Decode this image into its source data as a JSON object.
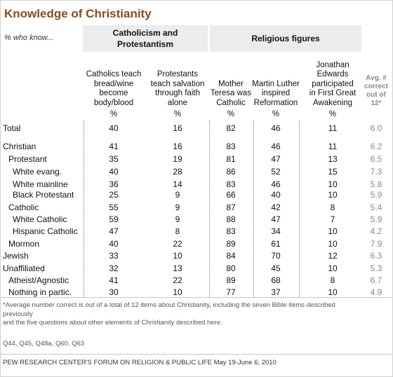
{
  "title": "Knowledge of Christianity",
  "subtitle": "% who know...",
  "column_groups": [
    {
      "label_line1": "Catholicism and",
      "label_line2": "Protestantism"
    },
    {
      "label_line1": "Religious figures",
      "label_line2": ""
    }
  ],
  "unit_symbol": "%",
  "chart_data": {
    "type": "table",
    "columns": [
      "Catholics teach bread/wine become body/blood",
      "Protestants teach salvation through faith alone",
      "Mother Teresa was Catholic",
      "Martin Luther inspired Reformation",
      "Jonathan Edwards participated in First Great Awakening",
      "Avg. # correct out of 12*"
    ],
    "column_header_lines": [
      [
        "Catholics teach",
        "bread/wine",
        "become",
        "body/blood"
      ],
      [
        "Protestants",
        "teach salvation",
        "through faith",
        "alone"
      ],
      [
        "Mother",
        "Teresa was",
        "Catholic"
      ],
      [
        "Martin Luther",
        "inspired",
        "Reformation"
      ],
      [
        "Jonathan",
        "Edwards",
        "participated",
        "in First Great",
        "Awakening"
      ],
      [
        "Avg. #",
        "correct",
        "out of",
        "12*"
      ]
    ],
    "rows": [
      {
        "label": "Total",
        "indent": 0,
        "values": [
          "40",
          "16",
          "82",
          "46",
          "11",
          "6.0"
        ]
      },
      {
        "label": "Christian",
        "indent": 0,
        "values": [
          "41",
          "16",
          "83",
          "46",
          "11",
          "6.2"
        ]
      },
      {
        "label": "Protestant",
        "indent": 1,
        "values": [
          "35",
          "19",
          "81",
          "47",
          "13",
          "6.5"
        ]
      },
      {
        "label": "White evang.",
        "indent": 2,
        "values": [
          "40",
          "28",
          "86",
          "52",
          "15",
          "7.3"
        ]
      },
      {
        "label": "White mainline",
        "indent": 2,
        "values": [
          "36",
          "14",
          "83",
          "46",
          "10",
          "5.8"
        ]
      },
      {
        "label": "Black Protestant",
        "indent": 2,
        "values": [
          "25",
          "9",
          "66",
          "40",
          "10",
          "5.9"
        ]
      },
      {
        "label": "Catholic",
        "indent": 1,
        "values": [
          "55",
          "9",
          "87",
          "42",
          "8",
          "5.4"
        ]
      },
      {
        "label": "White Catholic",
        "indent": 2,
        "values": [
          "59",
          "9",
          "88",
          "47",
          "7",
          "5.9"
        ]
      },
      {
        "label": "Hispanic Catholic",
        "indent": 2,
        "values": [
          "47",
          "8",
          "83",
          "34",
          "10",
          "4.2"
        ]
      },
      {
        "label": "Mormon",
        "indent": 1,
        "values": [
          "40",
          "22",
          "89",
          "61",
          "10",
          "7.9"
        ]
      },
      {
        "label": "Jewish",
        "indent": 0,
        "values": [
          "33",
          "10",
          "84",
          "70",
          "12",
          "6.3"
        ]
      },
      {
        "label": "Unaffiliated",
        "indent": 0,
        "values": [
          "32",
          "13",
          "80",
          "45",
          "10",
          "5.3"
        ]
      },
      {
        "label": "Atheist/Agnostic",
        "indent": 1,
        "values": [
          "41",
          "22",
          "89",
          "68",
          "8",
          "6.7"
        ]
      },
      {
        "label": "Nothing in partic.",
        "indent": 1,
        "values": [
          "30",
          "10",
          "77",
          "37",
          "10",
          "4.9"
        ]
      }
    ]
  },
  "footnote_lines": [
    "*Average number correct is out of a total of 12 items about Christianity, including the seven Bible items described",
    "previously",
    "and the five questions about other elements of Christianity described here."
  ],
  "question_numbers": "Q44, Q45, Q48a, Q60, Q63",
  "source": "PEW RESEARCH CENTER'S FORUM ON RELIGION & PUBLIC LIFE May 19-June 6, 2010",
  "colors": {
    "title": "#8a4b1c",
    "header_bg": "#ececec",
    "avg_text": "#8a8a8a"
  }
}
